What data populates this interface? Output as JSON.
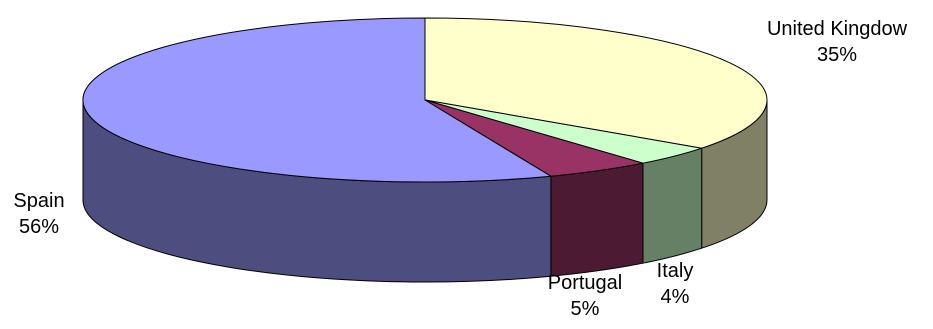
{
  "chart_data": {
    "type": "pie",
    "style": "3d",
    "categories": [
      "United Kingdow",
      "Italy",
      "Portugal",
      "Spain"
    ],
    "values": [
      35,
      4,
      5,
      56
    ],
    "labels": [
      "35%",
      "4%",
      "5%",
      "56%"
    ],
    "colors": {
      "top": [
        "#ffffcc",
        "#ccffcc",
        "#993366",
        "#9999ff"
      ],
      "side": [
        "#808066",
        "#668066",
        "#4d1a33",
        "#4d4d80"
      ]
    },
    "title": "",
    "legend": "none"
  }
}
